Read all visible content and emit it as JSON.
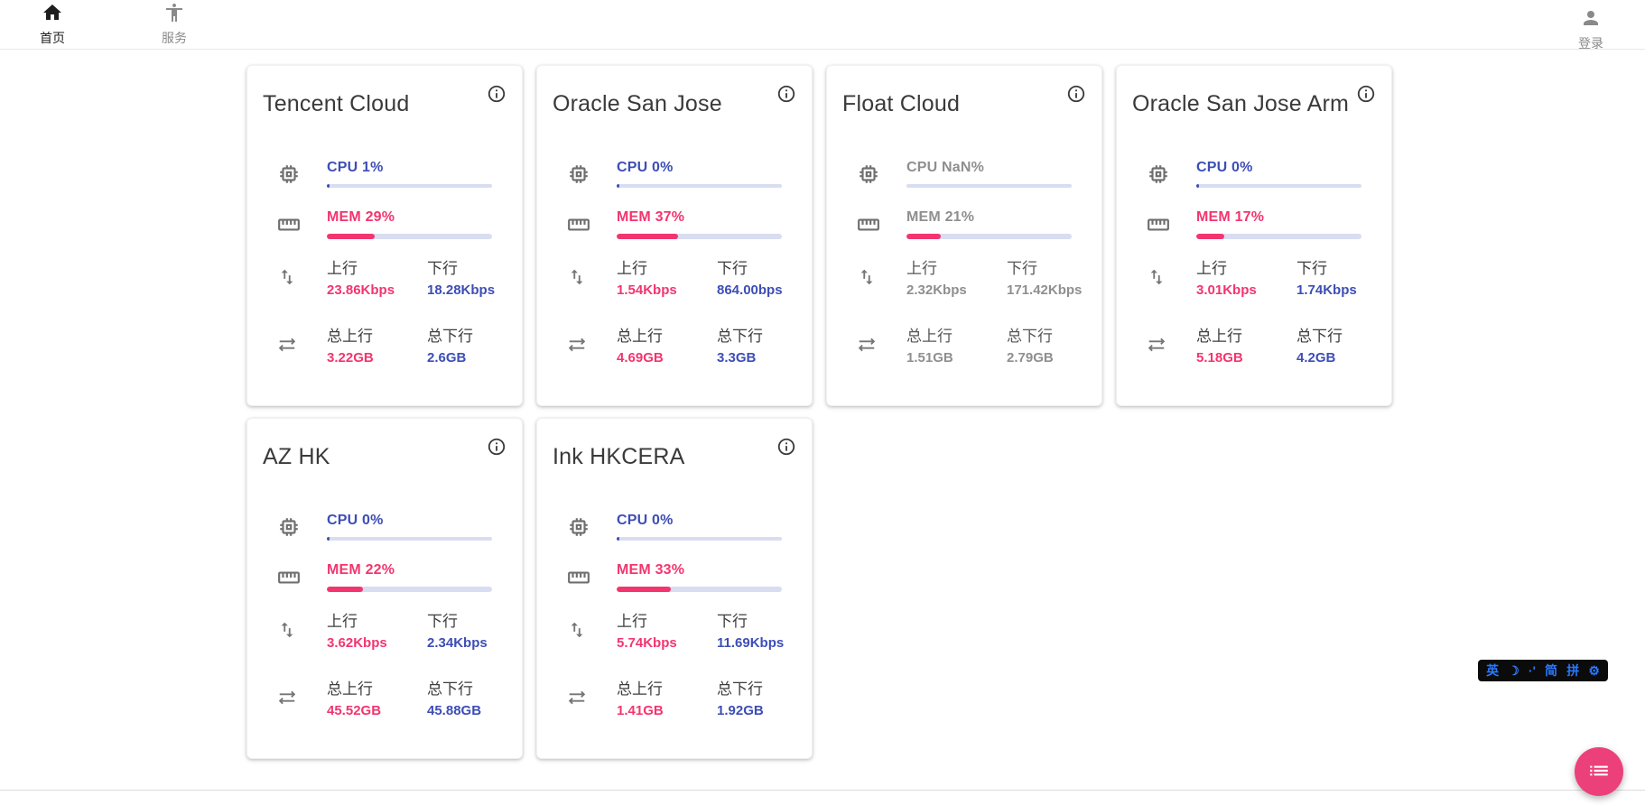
{
  "navbar": {
    "home": {
      "label": "首页"
    },
    "services": {
      "label": "服务"
    },
    "login": {
      "label": "登录"
    }
  },
  "labels": {
    "upload": "上行",
    "download": "下行",
    "total_upload": "总上行",
    "total_download": "总下行"
  },
  "cards": [
    {
      "name": "Tencent Cloud",
      "cpu": "CPU 1%",
      "cpu_percent": 1,
      "mem": "MEM 29%",
      "mem_percent": 29,
      "upload": "23.86Kbps",
      "download": "18.28Kbps",
      "total_upload": "3.22GB",
      "total_download": "2.6GB",
      "offline": false
    },
    {
      "name": "Oracle San Jose",
      "cpu": "CPU 0%",
      "cpu_percent": 0,
      "mem": "MEM 37%",
      "mem_percent": 37,
      "upload": "1.54Kbps",
      "download": "864.00bps",
      "total_upload": "4.69GB",
      "total_download": "3.3GB",
      "offline": false
    },
    {
      "name": "Float Cloud",
      "cpu": "CPU NaN%",
      "cpu_percent": null,
      "mem": "MEM 21%",
      "mem_percent": 21,
      "upload": "2.32Kbps",
      "download": "171.42Kbps",
      "total_upload": "1.51GB",
      "total_download": "2.79GB",
      "offline": true
    },
    {
      "name": "Oracle San Jose Arm",
      "cpu": "CPU 0%",
      "cpu_percent": 0,
      "mem": "MEM 17%",
      "mem_percent": 17,
      "upload": "3.01Kbps",
      "download": "1.74Kbps",
      "total_upload": "5.18GB",
      "total_download": "4.2GB",
      "offline": false
    },
    {
      "name": "AZ HK",
      "cpu": "CPU 0%",
      "cpu_percent": 0,
      "mem": "MEM 22%",
      "mem_percent": 22,
      "upload": "3.62Kbps",
      "download": "2.34Kbps",
      "total_upload": "45.52GB",
      "total_download": "45.88GB",
      "offline": false
    },
    {
      "name": "Ink HKCERA",
      "cpu": "CPU 0%",
      "cpu_percent": 0,
      "mem": "MEM 33%",
      "mem_percent": 33,
      "upload": "5.74Kbps",
      "download": "11.69Kbps",
      "total_upload": "1.41GB",
      "total_download": "1.92GB",
      "offline": false
    }
  ],
  "ime_toolbar": {
    "items": [
      "英",
      "☽",
      "·'",
      "简",
      "拼",
      "⚙"
    ]
  },
  "colors": {
    "cpu_blue": "#3d4eb5",
    "mem_pink": "#f3356f",
    "bar_track": "#d9ddf1",
    "offline_gray": "#8f8f8f",
    "fab_pink": "#ec407a",
    "ime_blue": "#2979ff"
  }
}
